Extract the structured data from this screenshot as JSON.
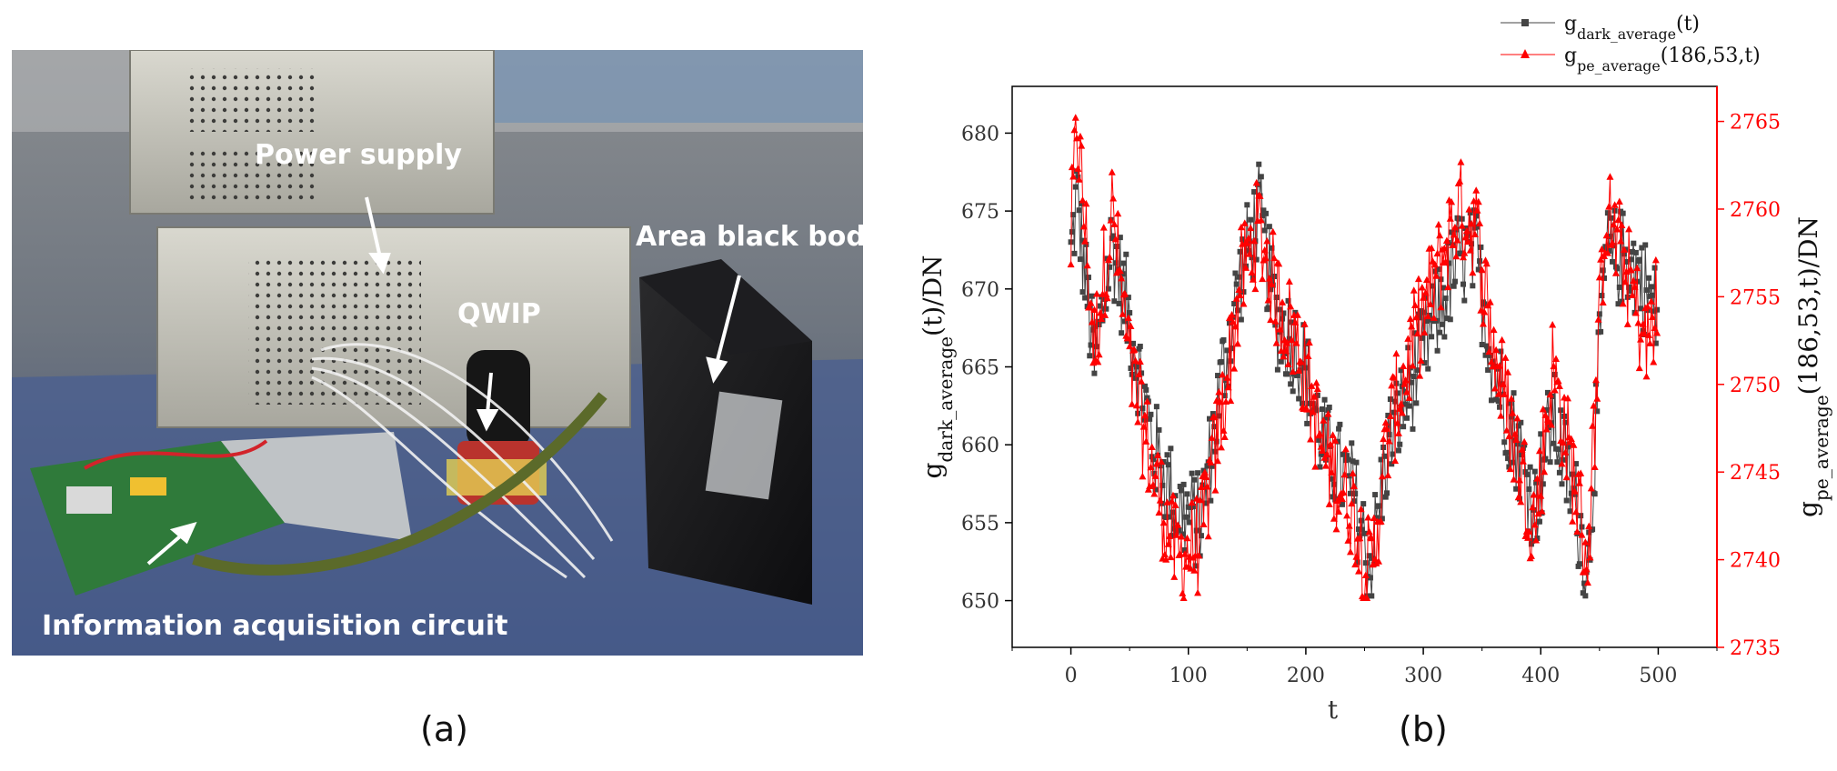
{
  "panels": {
    "a_label": "(a)",
    "b_label": "(b)"
  },
  "photo": {
    "labels": {
      "power_supply": "Power supply",
      "area_black_body": "Area black body",
      "qwip": "QWIP",
      "info_circuit": "Information acquisition circuit"
    }
  },
  "colors": {
    "dark_series": "#444444",
    "pe_series": "#ff0000",
    "right_axis": "#ff0000"
  },
  "chart_data": {
    "type": "line",
    "title": "",
    "xlabel": "t",
    "xlim": [
      -50,
      550
    ],
    "xticks": [
      0,
      100,
      200,
      300,
      400,
      500
    ],
    "ylabel_left": {
      "base": "g",
      "sub": "dark_average",
      "suffix": "(t)/DN"
    },
    "ylim_left": [
      647,
      683
    ],
    "yticks_left": [
      650,
      655,
      660,
      665,
      670,
      675,
      680
    ],
    "ylabel_right": {
      "base": "g",
      "sub": "pe_average",
      "suffix": "(186,53,t)/DN"
    },
    "ylim_right": [
      2735,
      2767
    ],
    "yticks_right": [
      2735,
      2740,
      2745,
      2750,
      2755,
      2760,
      2765
    ],
    "legend": [
      {
        "base": "g",
        "sub": "dark_average",
        "suffix": "(t)"
      },
      {
        "base": "g",
        "sub": "pe_average",
        "suffix": "(186,53,t)"
      }
    ],
    "legend_position": "above-top-right",
    "series_shape": {
      "points": 500,
      "note_keyframes_t": [
        0,
        5,
        20,
        35,
        50,
        70,
        90,
        110,
        130,
        145,
        160,
        175,
        195,
        215,
        240,
        255,
        270,
        290,
        310,
        330,
        345,
        360,
        380,
        395,
        410,
        430,
        440,
        455,
        475,
        490,
        500
      ],
      "dark_keyframes_y": [
        672,
        676,
        665,
        673,
        668,
        660,
        656,
        655,
        665,
        671,
        675,
        668,
        666,
        660,
        657,
        652,
        660,
        664,
        668,
        672,
        672,
        665,
        660,
        656,
        662,
        656,
        652,
        672,
        672,
        670,
        668
      ],
      "pe_keyframes_y": [
        2758,
        2765,
        2752,
        2760,
        2751,
        2745,
        2740,
        2741,
        2749,
        2756,
        2759,
        2755,
        2752,
        2746,
        2743,
        2739,
        2747,
        2752,
        2756,
        2760,
        2759,
        2752,
        2746,
        2742,
        2751,
        2744,
        2740,
        2760,
        2756,
        2752,
        2755
      ]
    }
  }
}
